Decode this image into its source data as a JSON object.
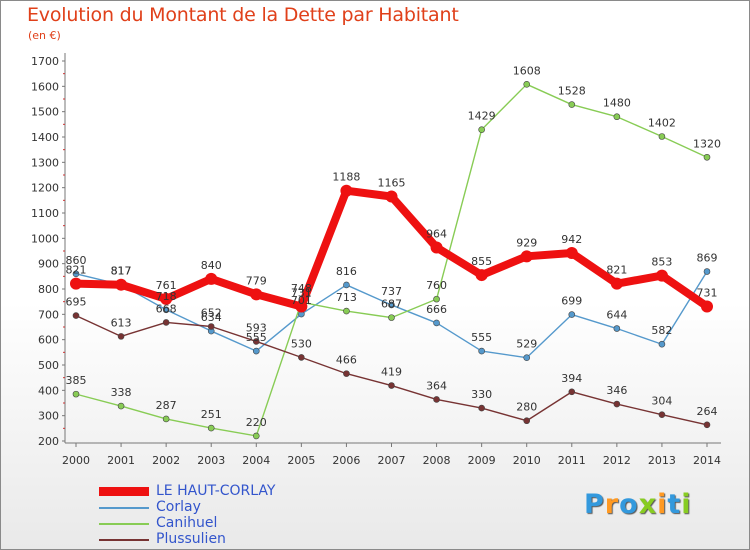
{
  "header": {
    "title": "Evolution du Montant de la Dette par Habitant",
    "unit": "(en €)"
  },
  "brand": {
    "letters": [
      "P",
      "r",
      "o",
      "x",
      "i",
      "t",
      "i"
    ],
    "colors": [
      "#3399dd",
      "#ff9922",
      "#3399dd",
      "#88cc22",
      "#ff9922",
      "#3399dd",
      "#88cc22"
    ]
  },
  "chart_data": {
    "type": "line",
    "x": [
      "2000",
      "2001",
      "2002",
      "2003",
      "2004",
      "2005",
      "2006",
      "2007",
      "2008",
      "2009",
      "2010",
      "2011",
      "2012",
      "2013",
      "2014"
    ],
    "ylim": [
      200,
      1700
    ],
    "yticks": [
      "200",
      "300",
      "400",
      "500",
      "600",
      "700",
      "800",
      "900",
      "1000",
      "1100",
      "1200",
      "1300",
      "1400",
      "1500",
      "1600",
      "1700"
    ],
    "grid": false,
    "legend_position": "bottom-left",
    "series": [
      {
        "name": "LE HAUT-CORLAY",
        "color": "#ee1111",
        "values": [
          821,
          817,
          761,
          840,
          779,
          731,
          1188,
          1165,
          964,
          855,
          929,
          942,
          821,
          853,
          731
        ]
      },
      {
        "name": "Corlay",
        "color": "#5599cc",
        "values": [
          860,
          817,
          718,
          634,
          555,
          701,
          816,
          737,
          666,
          555,
          529,
          699,
          644,
          582,
          869
        ]
      },
      {
        "name": "Canihuel",
        "color": "#88cc55",
        "values": [
          385,
          338,
          287,
          251,
          220,
          748,
          713,
          687,
          760,
          1429,
          1608,
          1528,
          1480,
          1402,
          1320
        ]
      },
      {
        "name": "Plussulien",
        "color": "#773333",
        "values": [
          695,
          613,
          668,
          652,
          593,
          530,
          466,
          419,
          364,
          330,
          280,
          394,
          346,
          304,
          264
        ]
      }
    ],
    "labels": {
      "LE HAUT-CORLAY": [
        "821",
        "817",
        "761",
        "840",
        "779",
        "731",
        "1188",
        "1165",
        "964",
        "855",
        "929",
        "942",
        "821",
        "853",
        "731"
      ],
      "Corlay": [
        "860",
        "817",
        "718",
        "634",
        "555",
        "701",
        "816",
        "737",
        "666",
        "555",
        "529",
        "699",
        "644",
        "582",
        "869"
      ],
      "Canihuel": [
        "385",
        "338",
        "287",
        "251",
        "220",
        "748",
        "713",
        "687",
        "760",
        "1429",
        "1608",
        "1528",
        "1480",
        "1402",
        "1320"
      ],
      "Plussulien": [
        "695",
        "613",
        "668",
        "652",
        "593",
        "530",
        "466",
        "419",
        "364",
        "330",
        "280",
        "394",
        "346",
        "304",
        "264"
      ]
    }
  }
}
